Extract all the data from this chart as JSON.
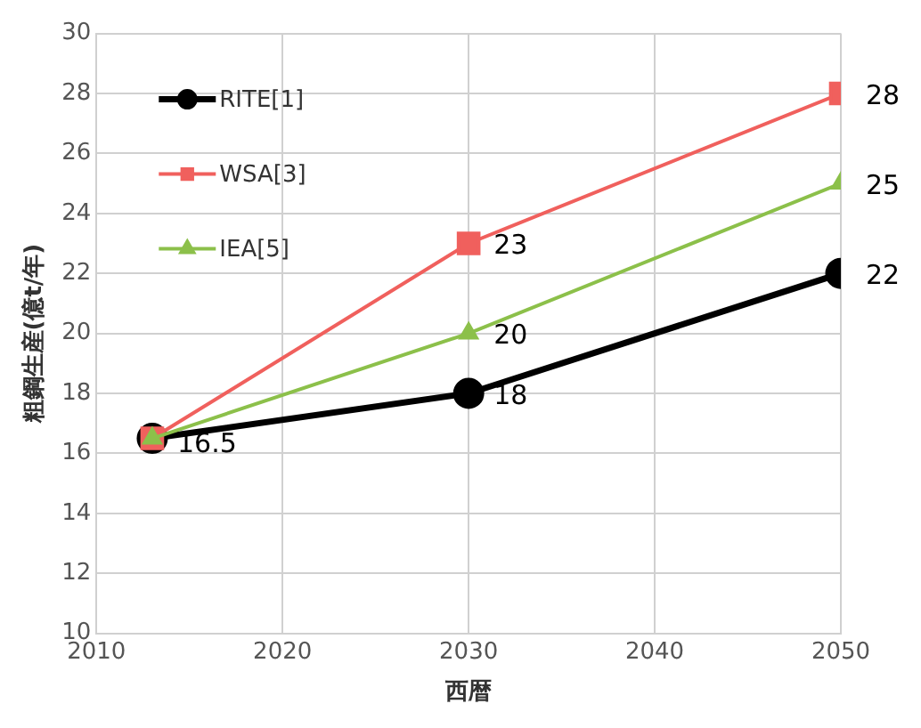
{
  "chart_data": {
    "type": "line",
    "xlabel": "西暦",
    "ylabel": "粗鋼生産(億t/年)",
    "x": [
      2013,
      2030,
      2050
    ],
    "series": [
      {
        "name": "RITE[1]",
        "color": "#000000",
        "values": [
          16.5,
          18,
          22
        ],
        "marker": "circle",
        "value_labels": [
          "16.5",
          "18",
          "22"
        ]
      },
      {
        "name": "WSA[3]",
        "color": "#f0605d",
        "values": [
          16.5,
          23,
          28
        ],
        "marker": "square",
        "value_labels": [
          null,
          "23",
          "28"
        ]
      },
      {
        "name": "IEA[5]",
        "color": "#8cc04a",
        "values": [
          16.5,
          20,
          25
        ],
        "marker": "triangle",
        "value_labels": [
          null,
          "20",
          "25"
        ]
      }
    ],
    "xlim": [
      2010,
      2050
    ],
    "xticks": [
      2010,
      2020,
      2030,
      2040,
      2050
    ],
    "ylim": [
      10,
      30
    ],
    "yticks": [
      10,
      12,
      14,
      16,
      18,
      20,
      22,
      24,
      26,
      28,
      30
    ],
    "grid": true,
    "legend": "top left",
    "line_style": "solid"
  }
}
